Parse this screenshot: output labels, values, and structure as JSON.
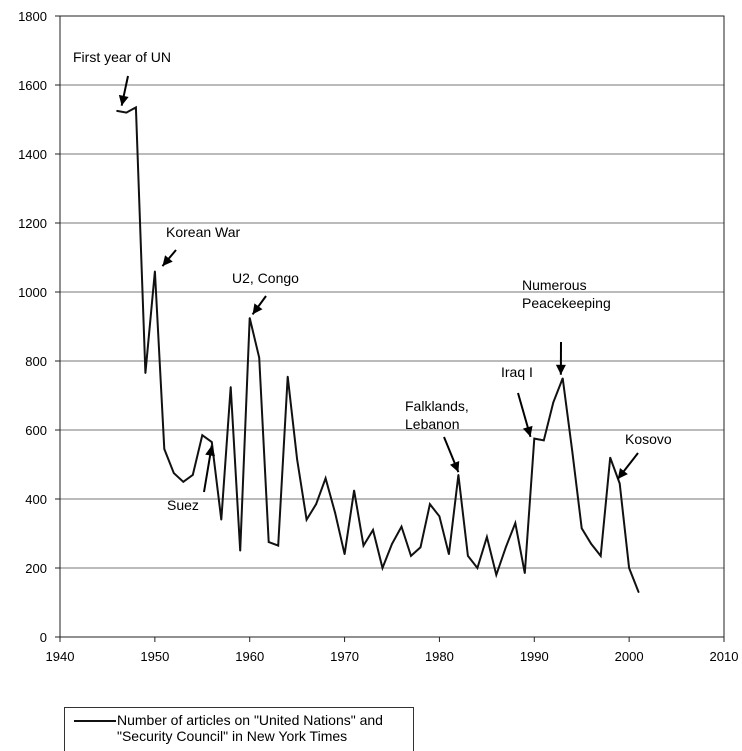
{
  "chart_data": {
    "type": "line",
    "title": "",
    "xlabel": "",
    "ylabel": "",
    "xlim": [
      1940,
      2010
    ],
    "ylim": [
      0,
      1800
    ],
    "xticks": [
      "1940",
      "1950",
      "1960",
      "1970",
      "1980",
      "1990",
      "2000",
      "2010"
    ],
    "yticks": [
      "0",
      "200",
      "400",
      "600",
      "800",
      "1000",
      "1200",
      "1400",
      "1600",
      "1800"
    ],
    "grid": "horizontal",
    "legend_position": "bottom-left",
    "series": [
      {
        "name_lines": [
          "Number of articles on \"United Nations\" and",
          "\"Security Council\" in New York Times"
        ],
        "x": [
          1946,
          1947,
          1948,
          1949,
          1950,
          1951,
          1952,
          1953,
          1954,
          1955,
          1956,
          1957,
          1958,
          1959,
          1960,
          1961,
          1962,
          1963,
          1964,
          1965,
          1966,
          1967,
          1968,
          1969,
          1970,
          1971,
          1972,
          1973,
          1974,
          1975,
          1976,
          1977,
          1978,
          1979,
          1980,
          1981,
          1982,
          1983,
          1984,
          1985,
          1986,
          1987,
          1988,
          1989,
          1990,
          1991,
          1992,
          1993,
          1994,
          1995,
          1996,
          1997,
          1998,
          1999,
          2000,
          2001
        ],
        "y": [
          1525,
          1520,
          1535,
          765,
          1060,
          545,
          475,
          450,
          470,
          585,
          565,
          340,
          725,
          250,
          925,
          810,
          275,
          265,
          755,
          515,
          340,
          385,
          460,
          360,
          240,
          425,
          265,
          310,
          200,
          270,
          320,
          235,
          260,
          385,
          350,
          240,
          470,
          235,
          200,
          290,
          180,
          260,
          330,
          185,
          575,
          570,
          680,
          750,
          540,
          315,
          270,
          235,
          520,
          445,
          200,
          130
        ]
      }
    ],
    "annotations": [
      {
        "text_lines": [
          "First year of UN"
        ],
        "x": 1946.5,
        "y": 1540
      },
      {
        "text_lines": [
          "Korean War"
        ],
        "x": 1950.8,
        "y": 1075
      },
      {
        "text_lines": [
          "U2, Congo"
        ],
        "x": 1960.3,
        "y": 935
      },
      {
        "text_lines": [
          "Suez"
        ],
        "x": 1956,
        "y": 555
      },
      {
        "text_lines": [
          "Falklands,",
          "Lebanon"
        ],
        "x": 1982,
        "y": 478
      },
      {
        "text_lines": [
          "Iraq I"
        ],
        "x": 1989.6,
        "y": 580
      },
      {
        "text_lines": [
          "Numerous",
          "Peacekeeping"
        ],
        "x": 1992.8,
        "y": 760
      },
      {
        "text_lines": [
          "Kosovo"
        ],
        "x": 1998.8,
        "y": 458
      }
    ]
  }
}
